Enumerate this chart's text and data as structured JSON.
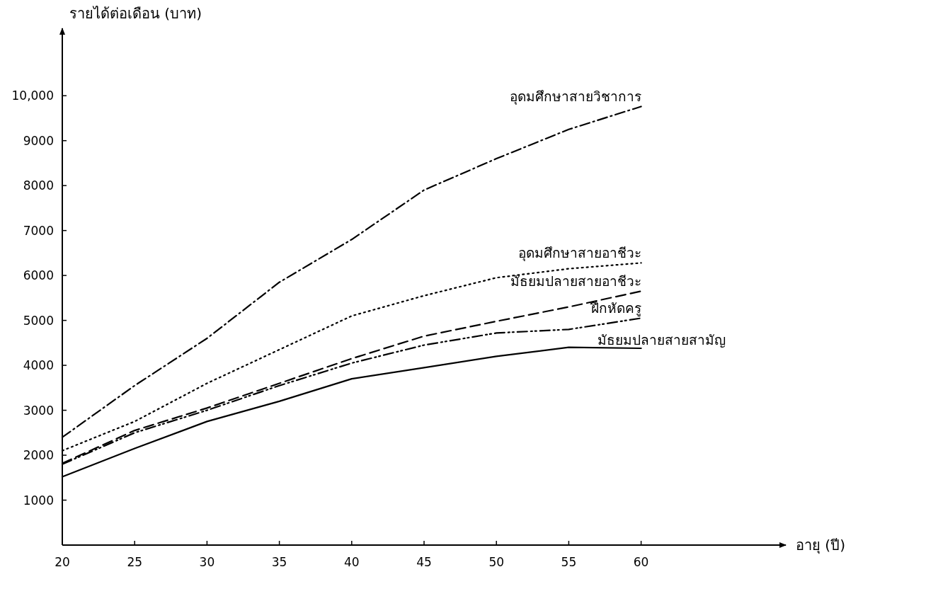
{
  "chart_data": {
    "type": "line",
    "xlabel": "อายุ (ปี)",
    "ylabel": "รายได้ต่อเดือน (บาท)",
    "x": [
      20,
      25,
      30,
      35,
      40,
      45,
      50,
      55,
      60
    ],
    "xlim": [
      20,
      70
    ],
    "xticks": [
      20,
      25,
      30,
      35,
      40,
      45,
      50,
      55,
      60
    ],
    "ylim": [
      0,
      11500
    ],
    "yticks": [
      1000,
      2000,
      3000,
      4000,
      5000,
      6000,
      7000,
      8000,
      9000,
      {
        "value": 10000,
        "label": "10,000"
      }
    ],
    "grid": false,
    "legend": false,
    "marker": "none",
    "series": [
      {
        "name": "อุดมศึกษาสายวิชาการ",
        "color": "#000000",
        "line_style": "dashdot",
        "values": [
          2400,
          3550,
          4600,
          5850,
          6800,
          7900,
          8600,
          9250,
          9760
        ]
      },
      {
        "name": "อุดมศึกษาสายอาชีวะ",
        "color": "#000000",
        "line_style": "dotted",
        "values": [
          2100,
          2750,
          3600,
          4350,
          5100,
          5550,
          5950,
          6150,
          6280
        ]
      },
      {
        "name": "มัธยมปลายสายอาชีวะ",
        "color": "#000000",
        "line_style": "dashed",
        "values": [
          1820,
          2550,
          3050,
          3600,
          4150,
          4650,
          4980,
          5300,
          5650
        ]
      },
      {
        "name": "ฝึกหัดครู",
        "color": "#000000",
        "line_style": "dashdotdot",
        "values": [
          1800,
          2500,
          3000,
          3550,
          4050,
          4450,
          4720,
          4800,
          5050
        ]
      },
      {
        "name": "มัธยมปลายสายสามัญ",
        "color": "#000000",
        "line_style": "solid",
        "values": [
          1520,
          2150,
          2750,
          3200,
          3700,
          3950,
          4200,
          4400,
          4380
        ]
      }
    ]
  }
}
